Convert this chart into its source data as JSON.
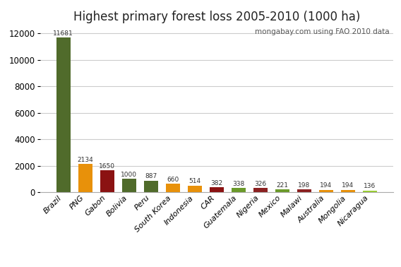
{
  "title": "Highest primary forest loss 2005-2010 (1000 ha)",
  "annotation": "mongabay.com using FAO 2010 data",
  "categories": [
    "Brazil",
    "PNG",
    "Gabon",
    "Bolivia",
    "Peru",
    "South Korea",
    "Indonesia",
    "CAR",
    "Guatemala",
    "Nigeria",
    "Mexico",
    "Malawi",
    "Australia",
    "Mongolia",
    "Nicaragua"
  ],
  "values": [
    11681,
    2134,
    1650,
    1000,
    887,
    660,
    514,
    382,
    338,
    326,
    221,
    198,
    194,
    194,
    136
  ],
  "bar_colors": [
    "#506b2b",
    "#e8910a",
    "#8b1212",
    "#506b2b",
    "#506b2b",
    "#e8910a",
    "#e8910a",
    "#8b1212",
    "#6b9a2a",
    "#8b2020",
    "#6b9a2a",
    "#8b2020",
    "#e8910a",
    "#e8910a",
    "#9acd32"
  ],
  "ylim": [
    0,
    12500
  ],
  "yticks": [
    0,
    2000,
    4000,
    6000,
    8000,
    10000,
    12000
  ],
  "background_color": "#ffffff",
  "grid_color": "#cccccc",
  "title_fontsize": 12,
  "label_fontsize": 8,
  "value_fontsize": 6.5,
  "annotation_fontsize": 7.5
}
